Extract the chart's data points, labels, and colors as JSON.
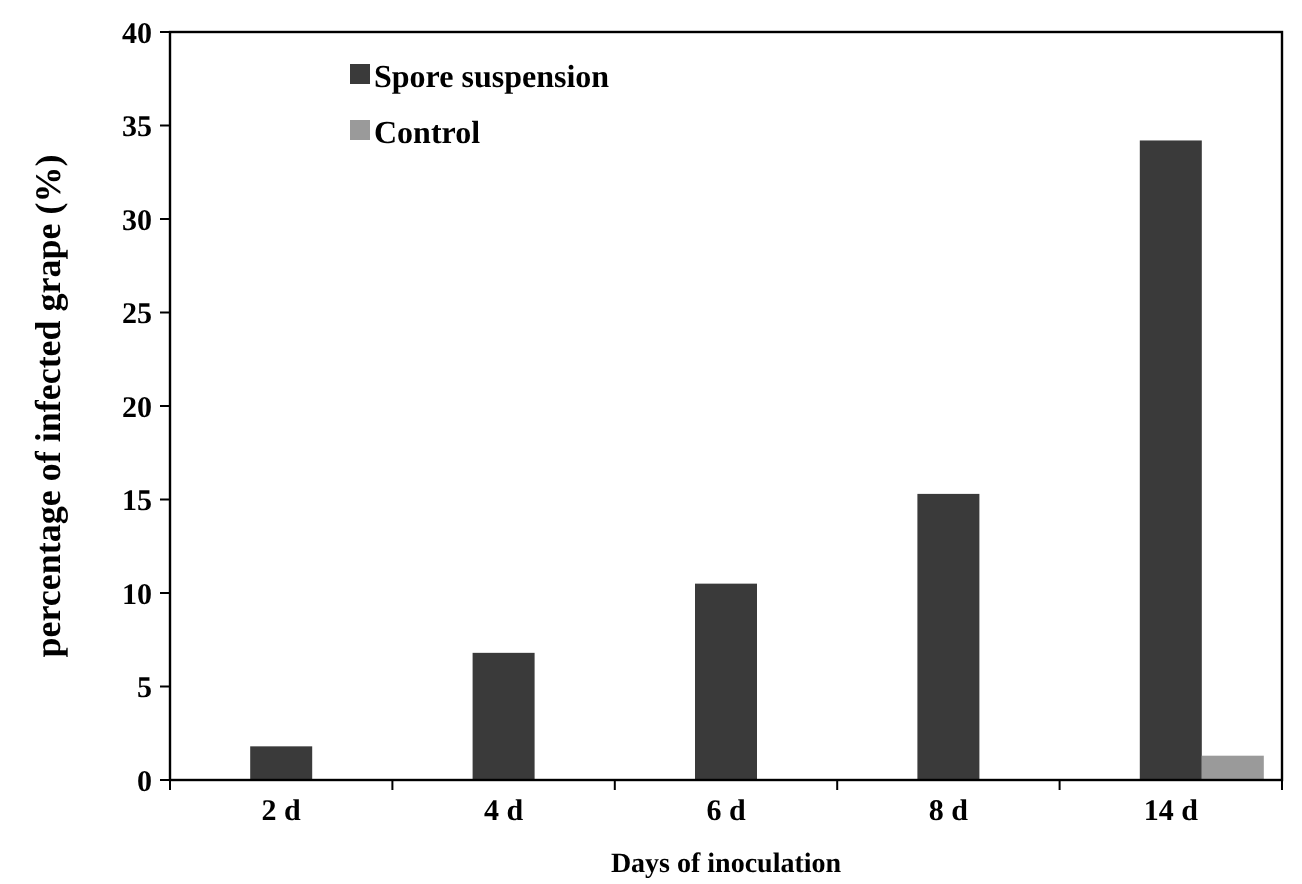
{
  "chart_data": {
    "type": "bar",
    "xlabel": "Days of inoculation",
    "ylabel": "percentage of infected grape (%)",
    "categories": [
      "2 d",
      "4 d",
      "6 d",
      "8 d",
      "14 d"
    ],
    "series": [
      {
        "name": "Spore suspension",
        "color": "#3a3a3a",
        "values": [
          1.8,
          6.8,
          10.5,
          15.3,
          34.2
        ]
      },
      {
        "name": "Control",
        "color": "#9a9a9a",
        "values": [
          0,
          0,
          0,
          0,
          1.3
        ]
      }
    ],
    "ylim": [
      0,
      40
    ],
    "yticks": [
      0,
      5,
      10,
      15,
      20,
      25,
      30,
      35,
      40
    ],
    "grid": false,
    "legend": "top left"
  }
}
